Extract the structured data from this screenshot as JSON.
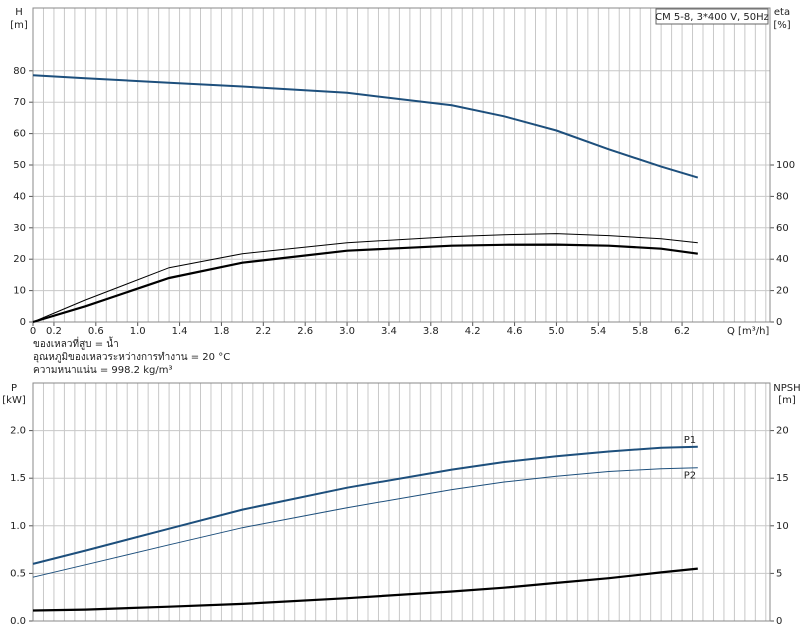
{
  "chart_data": [
    {
      "type": "line",
      "title": "CM 5-8, 3*400 V, 50Hz",
      "y_label": "H",
      "y_unit": "[m]",
      "y2_label": "eta",
      "y2_unit": "[%]",
      "x_label": "Q [m³/h]",
      "notes": [
        "ของเหลวที่สูบ = น้ำ",
        "อุณหภูมิของเหลวระหว่างการทำงาน = 20 °C",
        "ความหนาแน่น = 998.2 kg/m³"
      ],
      "xlim": [
        0,
        7.04
      ],
      "ylim": [
        0,
        100
      ],
      "y2lim": [
        0,
        200
      ],
      "xticks": [
        0,
        0.2,
        0.6,
        {
          "value": 1.0,
          "label": "1.0"
        },
        1.4,
        1.8,
        2.2,
        2.6,
        {
          "value": 3.0,
          "label": "3.0"
        },
        3.4,
        3.8,
        4.2,
        4.6,
        {
          "value": 5.0,
          "label": "5.0"
        },
        5.4,
        5.8,
        6.2
      ],
      "xgrid": [
        0.1,
        0.2,
        0.3,
        0.4,
        0.5,
        0.6,
        0.7,
        0.8,
        0.9,
        1,
        1.1,
        1.2,
        1.3,
        1.4,
        1.5,
        1.6,
        1.7,
        1.8,
        1.9,
        2,
        2.1,
        2.2,
        2.3,
        2.4,
        2.5,
        2.6,
        2.7,
        2.8,
        2.9,
        3,
        3.1,
        3.2,
        3.3,
        3.4,
        3.5,
        3.6,
        3.7,
        3.8,
        3.9,
        4,
        4.1,
        4.2,
        4.3,
        4.4,
        4.5,
        4.6,
        4.7,
        4.8,
        4.9,
        5,
        5.1,
        5.2,
        5.3,
        5.4,
        5.5,
        5.6,
        5.7,
        5.8,
        5.9,
        6,
        6.1,
        6.2,
        6.3,
        6.4,
        6.5,
        6.6,
        6.7,
        6.8,
        6.9,
        7
      ],
      "yticks": [
        0,
        10,
        20,
        30,
        40,
        50,
        60,
        70,
        80
      ],
      "y2ticks": [
        0,
        20,
        40,
        60,
        80,
        100
      ],
      "grid": true,
      "x": [
        0,
        0.5,
        1.3,
        2,
        3,
        4,
        4.5,
        5,
        5.5,
        6,
        6.35
      ],
      "series": [
        {
          "color": "#1d4f7c",
          "values": [
            78.6,
            77.6,
            76.2,
            75,
            73,
            69,
            65.5,
            61,
            55,
            49.5,
            46
          ]
        },
        {
          "color": "#000000",
          "axis": "y2",
          "values": [
            0,
            14,
            34.6,
            43.5,
            50.5,
            54.4,
            55.6,
            56.3,
            55,
            53,
            50.5
          ]
        },
        {
          "color": "#000000",
          "axis": "y2",
          "values": [
            0,
            10,
            28,
            37.8,
            45.4,
            48.6,
            49.2,
            49.3,
            48.6,
            46.7,
            43.5
          ]
        }
      ]
    },
    {
      "type": "line",
      "y_label": "P",
      "y_unit": "[kW]",
      "y2_label": "NPSH",
      "y2_unit": "[m]",
      "xlim": [
        0,
        7.04
      ],
      "ylim": [
        0,
        2.5
      ],
      "y2lim": [
        0,
        25
      ],
      "xgrid": [
        0.1,
        0.2,
        0.3,
        0.4,
        0.5,
        0.6,
        0.7,
        0.8,
        0.9,
        1,
        1.1,
        1.2,
        1.3,
        1.4,
        1.5,
        1.6,
        1.7,
        1.8,
        1.9,
        2,
        2.1,
        2.2,
        2.3,
        2.4,
        2.5,
        2.6,
        2.7,
        2.8,
        2.9,
        3,
        3.1,
        3.2,
        3.3,
        3.4,
        3.5,
        3.6,
        3.7,
        3.8,
        3.9,
        4,
        4.1,
        4.2,
        4.3,
        4.4,
        4.5,
        4.6,
        4.7,
        4.8,
        4.9,
        5,
        5.1,
        5.2,
        5.3,
        5.4,
        5.5,
        5.6,
        5.7,
        5.8,
        5.9,
        6,
        6.1,
        6.2,
        6.3,
        6.4,
        6.5,
        6.6,
        6.7,
        6.8,
        6.9,
        7
      ],
      "yticks": [
        {
          "value": 0,
          "label": "0.0"
        },
        0.5,
        {
          "value": 1,
          "label": "1.0"
        },
        1.5,
        {
          "value": 2,
          "label": "2.0"
        }
      ],
      "y2ticks": [
        0,
        5,
        10,
        15,
        20
      ],
      "grid": true,
      "x": [
        0,
        0.5,
        1.3,
        2,
        3,
        4,
        4.5,
        5,
        5.5,
        6,
        6.35
      ],
      "series": [
        {
          "name": "P1",
          "color": "#1d4f7c",
          "values": [
            0.6,
            0.74,
            0.97,
            1.17,
            1.4,
            1.59,
            1.67,
            1.73,
            1.78,
            1.82,
            1.83
          ]
        },
        {
          "name": "P2",
          "color": "#1d4f7c",
          "values": [
            0.46,
            0.59,
            0.8,
            0.98,
            1.19,
            1.38,
            1.46,
            1.52,
            1.57,
            1.6,
            1.61
          ]
        },
        {
          "color": "#000000",
          "axis": "y2",
          "values": [
            1.1,
            1.2,
            1.5,
            1.8,
            2.4,
            3.1,
            3.5,
            4.0,
            4.5,
            5.1,
            5.5
          ]
        }
      ]
    }
  ]
}
